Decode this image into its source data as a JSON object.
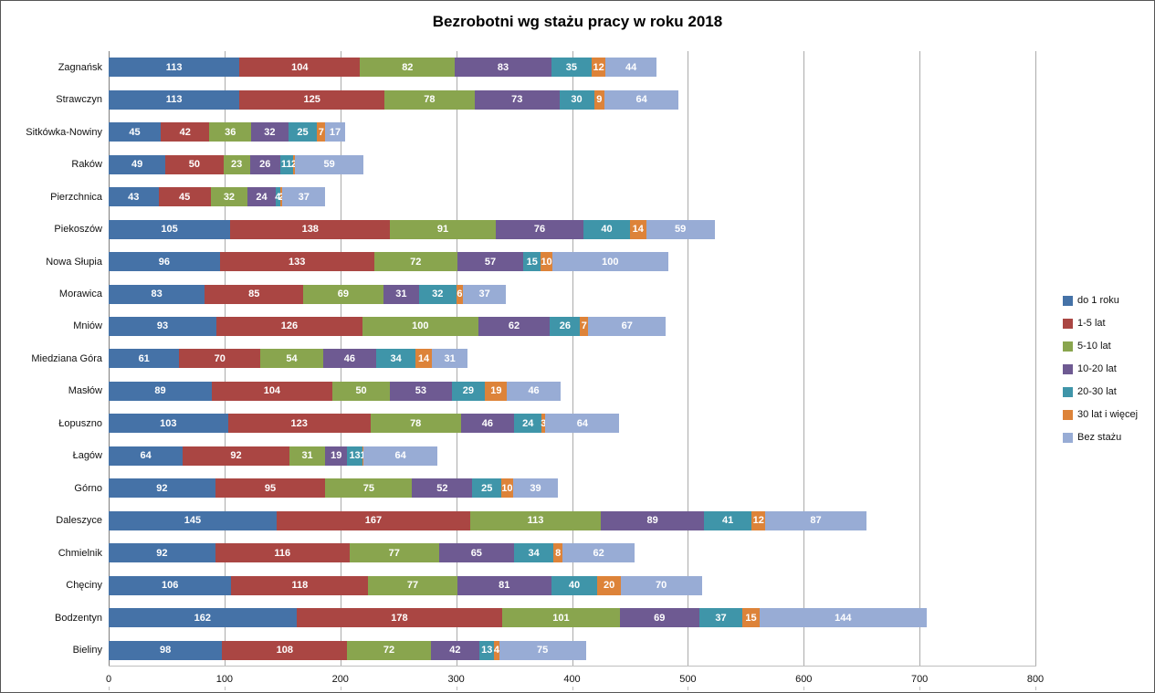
{
  "chart_data": {
    "type": "bar",
    "orientation": "horizontal",
    "stacked": true,
    "title": "Bezrobotni wg stażu pracy w roku 2018",
    "categories": [
      "Zagnańsk",
      "Strawczyn",
      "Sitkówka-Nowiny",
      "Raków",
      "Pierzchnica",
      "Piekoszów",
      "Nowa Słupia",
      "Morawica",
      "Mniów",
      "Miedziana Góra",
      "Masłów",
      "Łopuszno",
      "Łagów",
      "Górno",
      "Daleszyce",
      "Chmielnik",
      "Chęciny",
      "Bodzentyn",
      "Bieliny"
    ],
    "series": [
      {
        "name": "do 1 roku",
        "color": "#4572A7",
        "values": [
          113,
          113,
          45,
          49,
          43,
          105,
          96,
          83,
          93,
          61,
          89,
          103,
          64,
          92,
          145,
          92,
          106,
          162,
          98
        ]
      },
      {
        "name": "1-5 lat",
        "color": "#AA4643",
        "values": [
          104,
          125,
          42,
          50,
          45,
          138,
          133,
          85,
          126,
          70,
          104,
          123,
          92,
          95,
          167,
          116,
          118,
          178,
          108
        ]
      },
      {
        "name": "5-10 lat",
        "color": "#89A54E",
        "values": [
          82,
          78,
          36,
          23,
          32,
          91,
          72,
          69,
          100,
          54,
          50,
          78,
          31,
          75,
          113,
          77,
          77,
          101,
          72
        ]
      },
      {
        "name": "10-20 lat",
        "color": "#6E5A92",
        "values": [
          83,
          73,
          32,
          26,
          24,
          76,
          57,
          31,
          62,
          46,
          53,
          46,
          19,
          52,
          89,
          65,
          81,
          69,
          42
        ]
      },
      {
        "name": "20-30 lat",
        "color": "#3F95A9",
        "values": [
          35,
          30,
          25,
          11,
          4,
          40,
          15,
          32,
          26,
          34,
          29,
          24,
          13,
          25,
          41,
          34,
          40,
          37,
          13
        ]
      },
      {
        "name": "30 lat i więcej",
        "color": "#DD8339",
        "values": [
          12,
          9,
          7,
          2,
          2,
          14,
          10,
          6,
          7,
          14,
          19,
          3,
          1,
          10,
          12,
          8,
          20,
          15,
          4
        ]
      },
      {
        "name": "Bez stażu",
        "color": "#98ACD5",
        "values": [
          44,
          64,
          17,
          59,
          37,
          59,
          100,
          37,
          67,
          31,
          46,
          64,
          64,
          39,
          87,
          62,
          70,
          144,
          75
        ]
      }
    ],
    "xlim": [
      0,
      800
    ],
    "x_ticks": [
      0,
      100,
      200,
      300,
      400,
      500,
      600,
      700,
      800
    ],
    "grid": true,
    "legend_position": "right"
  }
}
